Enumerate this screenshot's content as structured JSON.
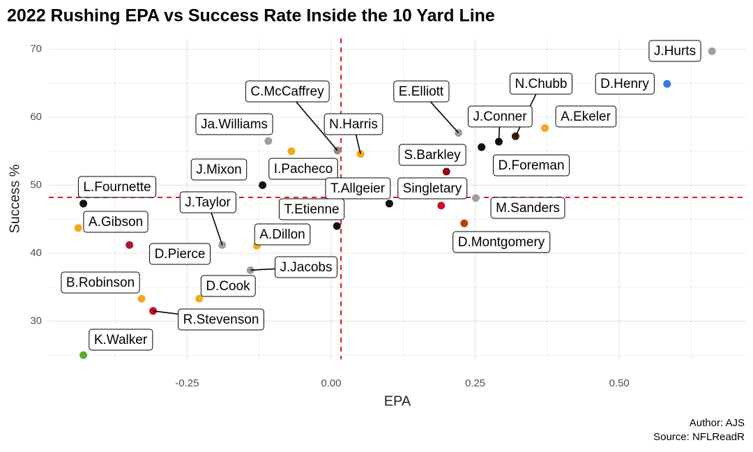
{
  "chart_data": {
    "type": "scatter",
    "title": "2022 Rushing EPA vs Success Rate Inside the 10 Yard Line",
    "x_label": "EPA",
    "y_label": "Success %",
    "caption": [
      "Author: AJS",
      "Source: NFLReadR"
    ],
    "labels": [
      "J.Hurts",
      "D.Henry",
      "A.Ekeler",
      "N.Chubb",
      "J.Conner",
      "D.Foreman",
      "E.Elliott",
      "N.Harris",
      "C.McCaffrey",
      "I.Pacheco",
      "Ja.Williams",
      "S.Barkley",
      "J.Mixon",
      "L.Fournette",
      "T.Allgeier",
      "Singletary",
      "M.Sanders",
      "D.Montgomery",
      "T.Etienne",
      "A.Gibson",
      "J.Taylor",
      "A.Dillon",
      "D.Pierce",
      "J.Jacobs",
      "B.Robinson",
      "D.Cook",
      "R.Stevenson",
      "K.Walker"
    ],
    "x": [
      0.661,
      0.583,
      0.371,
      0.32,
      0.291,
      0.261,
      0.221,
      0.051,
      0.011,
      -0.069,
      -0.109,
      0.2,
      -0.119,
      -0.43,
      0.101,
      0.191,
      0.251,
      0.231,
      0.01,
      -0.439,
      -0.189,
      -0.129,
      -0.35,
      -0.14,
      -0.329,
      -0.229,
      -0.309,
      -0.43
    ],
    "values": [
      69.7,
      64.9,
      58.4,
      57.2,
      56.4,
      55.6,
      57.7,
      54.6,
      55.1,
      55.0,
      56.5,
      52.0,
      50.0,
      47.3,
      47.3,
      47.0,
      48.1,
      44.4,
      44.0,
      43.7,
      41.2,
      41.1,
      41.2,
      37.5,
      33.3,
      33.3,
      31.5,
      25.0
    ],
    "colors": [
      "#9aa0a4",
      "#3a7bd5",
      "#f5a81c",
      "#3b1f0e",
      "#111111",
      "#111111",
      "#9aa0a4",
      "#f5a81c",
      "#9a8a6a",
      "#f5a81c",
      "#9aa0a4",
      "#8b0a1e",
      "#111111",
      "#111111",
      "#111111",
      "#c8102e",
      "#9aa0a4",
      "#c83803",
      "#111111",
      "#f5a81c",
      "#9aa0a4",
      "#f5a81c",
      "#a71930",
      "#9aa0a4",
      "#f5a81c",
      "#f5a81c",
      "#c60c30",
      "#5aae2e"
    ],
    "xlim": [
      -0.49,
      0.72
    ],
    "ylim": [
      24.4,
      71.6
    ],
    "xticks": [
      {
        "value": -0.25,
        "label": "-0.25"
      },
      {
        "value": 0,
        "label": "0.00"
      },
      {
        "value": 0.25,
        "label": "0.25"
      },
      {
        "value": 0.5,
        "label": "0.50"
      }
    ],
    "yticks": [
      30,
      40,
      50,
      60,
      70
    ],
    "vline": 0.017,
    "hline": 48.2,
    "ref_color": "#e8141c",
    "grid": true
  }
}
